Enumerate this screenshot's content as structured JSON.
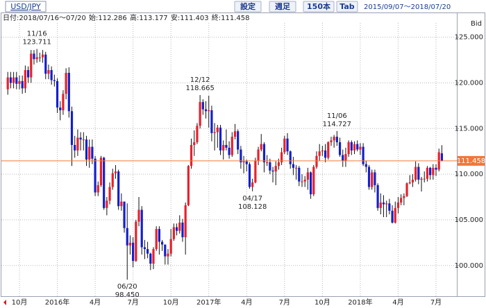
{
  "header": {
    "symbol": "USD/JPY",
    "buttons": [
      "設定",
      "週足",
      "150本",
      "Tab"
    ],
    "range": "2015/09/07〜2018/07/20"
  },
  "chart_data": {
    "type": "candlestick",
    "info_date": "日付:2018/07/16〜07/20",
    "info_labels": {
      "open": "始:",
      "high": "高:",
      "low": "安:",
      "close": "終:"
    },
    "price_label": "Bid",
    "up_color": "#e8202a",
    "down_color": "#1420c8",
    "wick_color": "#111111",
    "last_price_color": "#f07838",
    "grid": true,
    "ylim": [
      96.64,
      127.63
    ],
    "yticks": [
      {
        "value": 100,
        "label": "100.000"
      },
      {
        "value": 105,
        "label": "105.000"
      },
      {
        "value": 110,
        "label": "110.000"
      },
      {
        "value": 115,
        "label": "115.000"
      },
      {
        "value": 120,
        "label": "120.000"
      },
      {
        "value": 125,
        "label": "125.000"
      }
    ],
    "categories": [
      null,
      null,
      null,
      null,
      "10月",
      null,
      null,
      null,
      null,
      null,
      null,
      null,
      null,
      null,
      null,
      null,
      null,
      "2016年",
      null,
      null,
      null,
      null,
      null,
      null,
      null,
      null,
      null,
      null,
      null,
      null,
      "4月",
      null,
      null,
      null,
      null,
      null,
      null,
      null,
      null,
      null,
      null,
      null,
      null,
      "7月",
      null,
      null,
      null,
      null,
      null,
      null,
      null,
      null,
      null,
      null,
      null,
      null,
      "10月",
      null,
      null,
      null,
      null,
      null,
      null,
      null,
      null,
      null,
      null,
      null,
      null,
      "2017年",
      null,
      null,
      null,
      null,
      null,
      null,
      null,
      null,
      null,
      null,
      null,
      null,
      "4月",
      null,
      null,
      null,
      null,
      null,
      null,
      null,
      null,
      null,
      null,
      null,
      null,
      "7月",
      null,
      null,
      null,
      null,
      null,
      null,
      null,
      null,
      null,
      null,
      null,
      null,
      "10月",
      null,
      null,
      null,
      null,
      null,
      null,
      null,
      null,
      null,
      null,
      null,
      null,
      "2018年",
      null,
      null,
      null,
      null,
      null,
      null,
      null,
      null,
      null,
      null,
      null,
      null,
      "4月",
      null,
      null,
      null,
      null,
      null,
      null,
      null,
      null,
      null,
      null,
      null,
      null,
      "7月",
      null,
      null
    ],
    "open": [
      119.3,
      120.6,
      120.0,
      120.6,
      119.9,
      120.2,
      119.4,
      121.4,
      120.6,
      123.2,
      122.6,
      122.8,
      122.8,
      123.1,
      121.0,
      121.4,
      120.3,
      120.2,
      117.3,
      117.0,
      118.8,
      121.1,
      116.9,
      113.2,
      112.6,
      114.0,
      113.8,
      113.8,
      111.6,
      113.0,
      111.7,
      108.0,
      108.8,
      111.8,
      106.3,
      107.1,
      108.6,
      110.1,
      110.3,
      106.5,
      107.0,
      104.1,
      102.2,
      102.5,
      100.5,
      104.8,
      106.1,
      102.0,
      101.8,
      101.3,
      100.2,
      101.8,
      104.0,
      102.6,
      102.3,
      101.0,
      101.3,
      102.9,
      104.2,
      103.8,
      104.7,
      103.1,
      106.6,
      110.9,
      113.2,
      113.5,
      115.3,
      117.9,
      117.1,
      116.9,
      117.0,
      114.5,
      114.6,
      115.1,
      112.6,
      113.2,
      112.9,
      112.1,
      114.1,
      114.7,
      112.7,
      111.3,
      111.4,
      111.1,
      108.6,
      109.1,
      111.5,
      112.7,
      113.3,
      111.3,
      111.3,
      110.4,
      110.3,
      110.9,
      111.3,
      112.4,
      113.9,
      112.5,
      111.1,
      110.7,
      110.7,
      109.2,
      109.2,
      109.4,
      110.2,
      107.8,
      110.8,
      112.0,
      112.5,
      112.6,
      111.8,
      113.5,
      113.7,
      114.1,
      113.5,
      112.1,
      111.5,
      112.2,
      113.5,
      112.6,
      113.3,
      112.7,
      113.0,
      111.1,
      110.8,
      108.6,
      110.2,
      108.8,
      106.3,
      106.9,
      106.7,
      106.8,
      106.0,
      104.7,
      106.3,
      106.9,
      107.4,
      107.6,
      109.0,
      109.1,
      109.4,
      110.8,
      109.4,
      109.5,
      109.5,
      110.7,
      109.9,
      110.7,
      110.5,
      112.286
    ],
    "high": [
      121.2,
      121.2,
      121.2,
      121.2,
      120.8,
      120.8,
      121.9,
      121.8,
      123.6,
      123.6,
      123.711,
      123.3,
      123.6,
      123.4,
      122.0,
      121.8,
      120.9,
      120.5,
      118.0,
      119.2,
      121.6,
      121.7,
      117.4,
      114.2,
      114.9,
      114.6,
      114.6,
      114.2,
      113.8,
      113.8,
      112.0,
      109.2,
      112.0,
      111.9,
      107.5,
      109.1,
      110.6,
      111.0,
      110.5,
      107.9,
      107.0,
      106.8,
      103.3,
      103.1,
      105.0,
      107.5,
      106.5,
      102.8,
      102.6,
      101.4,
      102.0,
      104.3,
      104.3,
      102.8,
      102.3,
      101.8,
      104.0,
      104.6,
      104.6,
      105.5,
      105.1,
      106.9,
      111.0,
      113.9,
      114.8,
      115.6,
      118.665,
      118.2,
      118.0,
      118.6,
      117.5,
      115.6,
      115.4,
      115.4,
      113.7,
      114.9,
      113.6,
      114.6,
      115.5,
      114.9,
      113.1,
      112.0,
      111.6,
      111.3,
      109.5,
      111.8,
      113.0,
      114.4,
      113.5,
      112.1,
      111.7,
      110.8,
      111.4,
      111.7,
      112.9,
      114.2,
      114.5,
      112.6,
      111.9,
      111.0,
      110.9,
      110.0,
      109.8,
      110.7,
      110.3,
      111.0,
      112.5,
      113.3,
      113.1,
      113.3,
      113.6,
      114.1,
      114.3,
      114.727,
      114.0,
      112.7,
      112.9,
      113.7,
      113.7,
      113.6,
      113.7,
      113.4,
      113.4,
      111.5,
      111.0,
      110.5,
      110.5,
      109.0,
      107.9,
      107.7,
      107.1,
      107.3,
      106.6,
      107.0,
      107.5,
      107.8,
      107.9,
      109.1,
      109.9,
      110.0,
      111.4,
      111.2,
      109.7,
      110.3,
      110.9,
      110.8,
      111.1,
      111.1,
      112.8,
      113.177
    ],
    "low": [
      118.7,
      119.4,
      119.4,
      119.3,
      119.3,
      118.8,
      118.9,
      120.0,
      120.0,
      122.0,
      122.2,
      122.3,
      122.2,
      120.4,
      120.4,
      119.8,
      119.6,
      116.7,
      115.9,
      116.5,
      118.2,
      116.2,
      110.9,
      111.8,
      112.0,
      112.6,
      112.6,
      110.9,
      110.7,
      111.1,
      107.6,
      107.6,
      108.6,
      106.1,
      105.5,
      106.7,
      108.3,
      109.5,
      106.1,
      106.0,
      103.6,
      98.45,
      101.2,
      99.8,
      100.4,
      104.3,
      101.2,
      100.7,
      100.8,
      99.5,
      99.6,
      101.6,
      101.2,
      101.6,
      100.1,
      100.1,
      101.0,
      102.7,
      103.3,
      103.5,
      102.6,
      101.2,
      106.5,
      110.6,
      112.0,
      113.3,
      115.0,
      116.5,
      116.1,
      115.1,
      113.6,
      112.6,
      112.9,
      112.1,
      111.6,
      112.6,
      111.7,
      111.9,
      113.8,
      112.2,
      110.6,
      110.1,
      110.3,
      108.4,
      108.128,
      109.0,
      111.0,
      112.5,
      110.2,
      110.9,
      110.0,
      109.1,
      108.8,
      110.5,
      111.0,
      112.2,
      112.1,
      110.6,
      109.9,
      109.4,
      108.7,
      108.6,
      108.6,
      108.3,
      107.3,
      107.6,
      110.6,
      111.5,
      112.0,
      111.3,
      111.6,
      113.1,
      112.9,
      113.1,
      111.9,
      110.8,
      110.8,
      111.9,
      112.1,
      112.2,
      112.5,
      112.1,
      110.9,
      110.2,
      108.3,
      108.3,
      108.0,
      106.0,
      105.6,
      105.3,
      105.3,
      105.6,
      104.6,
      104.6,
      105.7,
      106.6,
      106.6,
      107.5,
      108.9,
      108.6,
      109.2,
      108.9,
      108.1,
      109.1,
      109.2,
      109.4,
      109.4,
      109.8,
      110.3,
      111.403
    ],
    "close": [
      120.6,
      120.0,
      120.6,
      119.9,
      120.2,
      119.4,
      121.4,
      120.6,
      123.2,
      122.6,
      122.8,
      122.8,
      123.1,
      121.0,
      121.4,
      120.3,
      120.2,
      117.3,
      117.0,
      118.8,
      121.1,
      116.9,
      113.2,
      112.6,
      114.0,
      113.8,
      113.8,
      111.6,
      113.0,
      111.7,
      108.0,
      108.8,
      111.8,
      106.3,
      107.1,
      108.6,
      110.1,
      110.3,
      106.5,
      107.0,
      104.1,
      102.2,
      102.5,
      100.5,
      104.8,
      106.1,
      102.0,
      101.8,
      101.3,
      100.2,
      101.8,
      104.0,
      102.6,
      102.3,
      101.0,
      101.3,
      102.9,
      104.2,
      103.8,
      104.7,
      103.1,
      106.6,
      110.9,
      113.2,
      113.5,
      115.3,
      117.9,
      117.1,
      116.9,
      117.0,
      114.5,
      114.6,
      115.1,
      112.6,
      113.2,
      112.9,
      112.1,
      114.1,
      114.7,
      112.7,
      111.3,
      111.4,
      111.1,
      108.6,
      109.1,
      111.5,
      112.7,
      113.3,
      111.3,
      111.3,
      110.4,
      110.3,
      110.9,
      111.3,
      112.4,
      113.9,
      112.5,
      111.1,
      110.7,
      110.7,
      109.2,
      109.2,
      109.4,
      110.2,
      107.8,
      110.8,
      112.0,
      112.5,
      112.6,
      111.8,
      113.5,
      113.7,
      114.1,
      113.5,
      112.1,
      111.5,
      112.2,
      113.5,
      112.6,
      113.3,
      112.7,
      113.0,
      111.1,
      110.8,
      108.6,
      110.2,
      108.8,
      106.3,
      106.9,
      106.7,
      106.8,
      106.0,
      104.7,
      106.3,
      106.9,
      107.4,
      107.6,
      109.0,
      109.1,
      109.4,
      110.8,
      109.4,
      109.5,
      109.5,
      110.7,
      109.9,
      110.7,
      110.5,
      112.4,
      111.458
    ],
    "annotations": [
      {
        "date": "11/16",
        "value": 123.711
      },
      {
        "date": "06/20",
        "value": 98.45,
        "value_label": "98.450"
      },
      {
        "date": "12/12",
        "value": 118.665
      },
      {
        "date": "04/17",
        "value": 108.128
      },
      {
        "date": "11/06",
        "value": 114.727
      }
    ]
  }
}
